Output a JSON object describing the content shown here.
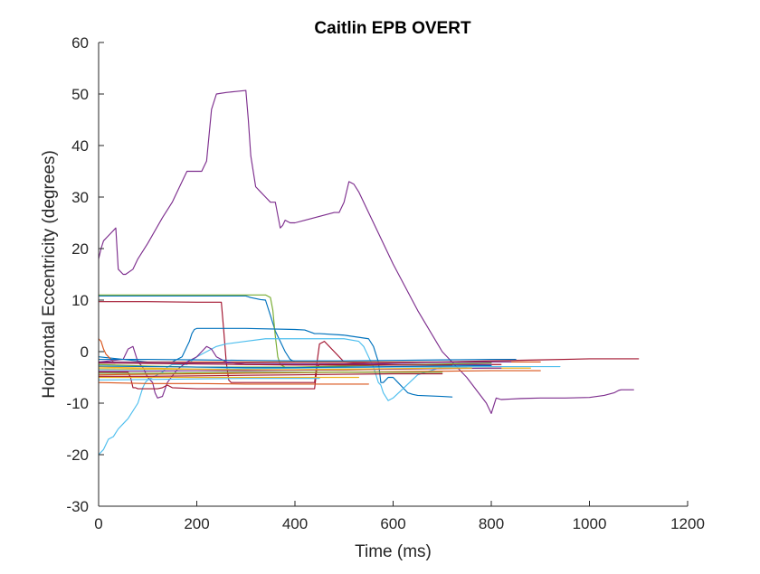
{
  "chart_data": {
    "type": "line",
    "title": "Caitlin EPB OVERT",
    "xlabel": "Time (ms)",
    "ylabel": "Horizontal Eccentricity (degrees)",
    "xlim": [
      0,
      1200
    ],
    "ylim": [
      -30,
      60
    ],
    "xticks": [
      0,
      200,
      400,
      600,
      800,
      1000,
      1200
    ],
    "yticks": [
      -30,
      -20,
      -10,
      0,
      10,
      20,
      30,
      40,
      50,
      60
    ],
    "grid": false,
    "legend": "none",
    "series": [
      {
        "color": "#7e2f8e",
        "x": [
          0,
          5,
          10,
          20,
          35,
          40,
          50,
          55,
          70,
          80,
          100,
          130,
          150,
          160,
          170,
          180,
          190,
          200,
          210,
          220,
          230,
          240,
          260,
          280,
          300,
          305,
          310,
          320,
          330,
          340,
          350,
          360,
          370,
          375,
          380,
          390,
          400,
          420,
          440,
          460,
          480,
          490,
          500,
          510,
          520,
          530,
          550,
          600,
          650,
          700,
          750,
          790,
          800,
          810,
          820,
          840,
          860,
          900,
          950,
          1000,
          1030,
          1050,
          1060,
          1065,
          1070,
          1090
        ],
        "y": [
          18,
          20,
          21.5,
          22.5,
          24,
          16,
          15,
          15,
          16,
          18,
          21,
          26,
          29,
          31,
          33,
          35,
          35,
          35,
          35,
          37,
          47,
          50,
          50.3,
          50.5,
          50.7,
          45,
          38,
          32,
          31,
          30,
          29,
          29,
          24,
          24.5,
          25.5,
          25,
          25,
          25.5,
          26,
          26.5,
          27,
          27,
          29,
          33,
          32.5,
          31,
          27,
          17,
          8,
          0,
          -5,
          -10,
          -12,
          -9,
          -9.3,
          -9.2,
          -9.1,
          -9,
          -9,
          -8.9,
          -8.5,
          -8,
          -7.5,
          -7.4,
          -7.4,
          -7.4
        ]
      },
      {
        "color": "#0072bd",
        "x": [
          0,
          100,
          200,
          300,
          310,
          320,
          330,
          340,
          350,
          360,
          370,
          380,
          390,
          400,
          410,
          420,
          430,
          440,
          450,
          460,
          470,
          480,
          490,
          500,
          510,
          520,
          530,
          540,
          550,
          560,
          570,
          575,
          580,
          590,
          600,
          610,
          620,
          650,
          700,
          720
        ],
        "y": [
          10.8,
          10.8,
          10.8,
          10.8,
          10.5,
          10.3,
          10.1,
          10,
          7,
          4,
          2,
          0,
          -1.5,
          -2,
          -2,
          -2,
          -2,
          -2,
          -2,
          -2,
          -2,
          -2,
          -2,
          -2,
          -2,
          -2,
          -2,
          -2,
          -2,
          -2,
          -2,
          -2,
          -2,
          -2,
          -2,
          -2,
          -2,
          -2,
          -2,
          -2
        ]
      },
      {
        "color": "#77ac30",
        "x": [
          0,
          100,
          200,
          300,
          340,
          350,
          355,
          360,
          365,
          370,
          380,
          400,
          450,
          500
        ],
        "y": [
          11,
          11,
          11,
          11,
          11,
          10.5,
          8,
          3,
          -1,
          -2.5,
          -3,
          -3,
          -3,
          -3
        ]
      },
      {
        "color": "#a2142f",
        "x": [
          0,
          100,
          200,
          250,
          255,
          260,
          265,
          270,
          300,
          400,
          440,
          445,
          450,
          460,
          500,
          600,
          700,
          800,
          820
        ],
        "y": [
          9.7,
          9.7,
          9.6,
          9.6,
          4,
          -2,
          -5.5,
          -6,
          -6,
          -6,
          -6,
          -2,
          1.5,
          2,
          -2,
          -2.5,
          -2.5,
          -2.5,
          -2.5
        ]
      },
      {
        "color": "#0072bd",
        "x": [
          0,
          50,
          100,
          150,
          170,
          175,
          180,
          185,
          190,
          195,
          200,
          300,
          400,
          420,
          440,
          450,
          500,
          550,
          560,
          570,
          575,
          580,
          590,
          600,
          610,
          620,
          630,
          640,
          650,
          700,
          720
        ],
        "y": [
          -1,
          -1.5,
          -2,
          -2,
          -1,
          0,
          1,
          2,
          3.5,
          4.3,
          4.5,
          4.5,
          4.3,
          4.2,
          3.5,
          3.5,
          3.2,
          2.5,
          1,
          -2,
          -6,
          -6,
          -5,
          -5,
          -6,
          -7,
          -8,
          -8.3,
          -8.5,
          -8.7,
          -8.8
        ]
      },
      {
        "color": "#4dbeee",
        "x": [
          0,
          10,
          20,
          30,
          40,
          50,
          55,
          60,
          80,
          90,
          95,
          100,
          110,
          120,
          130,
          140,
          150,
          160,
          170,
          180,
          200,
          220,
          240,
          260,
          300,
          340,
          360,
          370,
          380,
          390,
          400,
          500,
          530,
          540,
          550,
          560,
          570,
          575,
          580,
          590,
          600,
          650,
          700,
          720,
          750
        ],
        "y": [
          -20,
          -19,
          -17,
          -16.5,
          -15,
          -14,
          -13.5,
          -13,
          -10,
          -7,
          -6,
          -5.5,
          -5,
          -4.5,
          -4,
          -3,
          -2.5,
          -2.5,
          -2.5,
          -2.5,
          -1,
          0,
          1,
          1.5,
          2,
          2.5,
          2.5,
          2.5,
          2.5,
          2.5,
          2.5,
          2.5,
          2,
          1,
          -1,
          -3,
          -6,
          -6.5,
          -8,
          -9.5,
          -9,
          -4.5,
          -3,
          -3,
          -3
        ]
      },
      {
        "color": "#d95319",
        "x": [
          0,
          5,
          10,
          15,
          20,
          25,
          30,
          50,
          100,
          200,
          300,
          400,
          500,
          600,
          650,
          700,
          750,
          800,
          850,
          900
        ],
        "y": [
          2.5,
          2,
          0.5,
          -0.5,
          -1,
          -1.5,
          -2,
          -2,
          -2,
          -2,
          -2,
          -2,
          -2,
          -2,
          -2,
          -2,
          -2,
          -2,
          -2,
          -2
        ]
      },
      {
        "color": "#7e2f8e",
        "x": [
          0,
          50,
          60,
          70,
          80,
          90,
          100,
          110,
          115,
          120,
          130,
          140,
          160,
          180,
          200,
          210,
          220,
          230,
          240,
          260,
          300,
          400,
          500,
          600,
          700,
          800
        ],
        "y": [
          -2,
          -1.5,
          0.5,
          1,
          -2,
          -3,
          -5,
          -6,
          -8,
          -9,
          -8.7,
          -6,
          -3.5,
          -2,
          -1,
          0,
          1,
          0.5,
          -1,
          -2,
          -2.5,
          -2.5,
          -2.5,
          -2.5,
          -2.5,
          -2.5
        ]
      },
      {
        "color": "#a2142f",
        "x": [
          0,
          30,
          60,
          65,
          70,
          75,
          80,
          100,
          120,
          130,
          140,
          150,
          200,
          300,
          400,
          440,
          445,
          450,
          460,
          500,
          600,
          700,
          800,
          900,
          1000,
          1100
        ],
        "y": [
          -4,
          -4,
          -4,
          -5,
          -7,
          -7,
          -7.2,
          -7.2,
          -7.2,
          -7,
          -6.5,
          -7,
          -7.2,
          -7.2,
          -7.2,
          -7.2,
          -3,
          -2.5,
          -2.5,
          -2.4,
          -2.2,
          -2,
          -1.8,
          -1.6,
          -1.4,
          -1.4
        ]
      },
      {
        "color": "#edb120",
        "x": [
          0,
          100,
          200,
          300,
          400,
          500,
          550,
          580,
          600,
          700,
          800,
          850,
          880
        ],
        "y": [
          -3,
          -3.2,
          -3.4,
          -3.5,
          -3.6,
          -3.6,
          -3.5,
          -3.4,
          -3.4,
          -3.3,
          -3.2,
          -3.2,
          -3.2
        ]
      },
      {
        "color": "#0072bd",
        "x": [
          0,
          100,
          200,
          300,
          400,
          500,
          600,
          700,
          800,
          850
        ],
        "y": [
          -1.5,
          -1.5,
          -1.6,
          -1.7,
          -1.8,
          -1.8,
          -1.7,
          -1.6,
          -1.5,
          -1.5
        ]
      },
      {
        "color": "#d95319",
        "x": [
          0,
          100,
          200,
          300,
          400,
          500,
          550
        ],
        "y": [
          -6,
          -6.2,
          -6.2,
          -6.3,
          -6.3,
          -6.3,
          -6.3
        ]
      },
      {
        "color": "#77ac30",
        "x": [
          0,
          100,
          200,
          300,
          400,
          500,
          600,
          700,
          800
        ],
        "y": [
          -2.5,
          -2.8,
          -3,
          -3,
          -3,
          -2.8,
          -2.6,
          -2.4,
          -2.2
        ]
      },
      {
        "color": "#4dbeee",
        "x": [
          0,
          100,
          200,
          300,
          400,
          500,
          600,
          700,
          800,
          900,
          940
        ],
        "y": [
          -3.5,
          -3.5,
          -3.4,
          -3.3,
          -3.2,
          -3.1,
          -3,
          -3,
          -2.9,
          -2.9,
          -2.9
        ]
      },
      {
        "color": "#edb120",
        "x": [
          0,
          100,
          200,
          300,
          400,
          500,
          530
        ],
        "y": [
          -5,
          -5,
          -5,
          -5,
          -5,
          -5,
          -5
        ]
      },
      {
        "color": "#7e2f8e",
        "x": [
          0,
          100,
          200,
          300,
          400,
          500,
          600,
          700,
          800,
          820
        ],
        "y": [
          -3.8,
          -3.8,
          -3.7,
          -3.7,
          -3.6,
          -3.5,
          -3.4,
          -3.3,
          -3.2,
          -3.2
        ]
      },
      {
        "color": "#a2142f",
        "x": [
          0,
          100,
          200,
          300,
          400,
          500,
          600,
          700,
          720
        ],
        "y": [
          -2.2,
          -2.3,
          -2.4,
          -2.5,
          -2.6,
          -2.6,
          -2.6,
          -2.6,
          -2.6
        ]
      },
      {
        "color": "#d95319",
        "x": [
          0,
          100,
          200,
          300,
          400,
          500,
          600,
          700,
          800,
          900
        ],
        "y": [
          -4.5,
          -4.4,
          -4.3,
          -4.2,
          -4.1,
          -4,
          -3.9,
          -3.8,
          -3.7,
          -3.7
        ]
      },
      {
        "color": "#0072bd",
        "x": [
          0,
          100,
          200,
          300,
          400,
          500,
          600,
          700,
          800
        ],
        "y": [
          -2.8,
          -2.9,
          -3,
          -3.1,
          -3.1,
          -3,
          -2.9,
          -2.8,
          -2.7
        ]
      },
      {
        "color": "#77ac30",
        "x": [
          0,
          100,
          200,
          300,
          400,
          500,
          600,
          700
        ],
        "y": [
          -4.2,
          -4.2,
          -4.1,
          -4,
          -4,
          -4,
          -4,
          -4
        ]
      },
      {
        "color": "#4dbeee",
        "x": [
          0,
          100,
          200,
          300,
          400,
          450
        ],
        "y": [
          -5.5,
          -5.4,
          -5.3,
          -5.2,
          -5.2,
          -5.2
        ]
      },
      {
        "color": "#edb120",
        "x": [
          0,
          100,
          200,
          300,
          400,
          500,
          600,
          700,
          760
        ],
        "y": [
          -3.3,
          -3.4,
          -3.4,
          -3.5,
          -3.5,
          -3.4,
          -3.3,
          -3.2,
          -3.2
        ]
      },
      {
        "color": "#a2142f",
        "x": [
          0,
          100,
          200,
          300,
          400,
          500,
          600,
          700
        ],
        "y": [
          -4.8,
          -4.8,
          -4.7,
          -4.6,
          -4.5,
          -4.4,
          -4.3,
          -4.3
        ]
      },
      {
        "color": "#7e2f8e",
        "x": [
          0,
          100,
          200,
          300,
          400,
          500,
          600,
          700,
          800,
          840
        ],
        "y": [
          -2,
          -2.1,
          -2.2,
          -2.2,
          -2.3,
          -2.3,
          -2.2,
          -2.1,
          -2,
          -2
        ]
      }
    ]
  }
}
